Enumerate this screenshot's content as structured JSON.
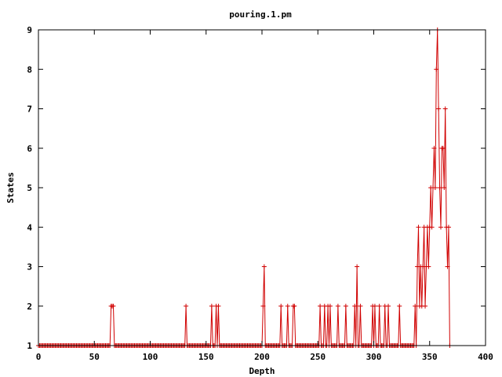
{
  "chart_data": {
    "type": "line",
    "title": "pouring.1.pm",
    "xlabel": "Depth",
    "ylabel": "States",
    "xlim": [
      0,
      400
    ],
    "ylim": [
      1,
      9
    ],
    "xticks": [
      0,
      50,
      100,
      150,
      200,
      250,
      300,
      350,
      400
    ],
    "yticks": [
      1,
      2,
      3,
      4,
      5,
      6,
      7,
      8,
      9
    ],
    "grid": false,
    "legend": "none",
    "colors": {
      "series": "#d00000",
      "frame": "#000000"
    },
    "series": [
      {
        "spikes": [
          [
            65,
            2
          ],
          [
            66,
            2
          ],
          [
            67,
            2
          ],
          [
            132,
            2
          ],
          [
            155,
            2
          ],
          [
            159,
            2
          ],
          [
            161,
            2
          ],
          [
            201,
            2
          ],
          [
            202,
            3
          ],
          [
            217,
            2
          ],
          [
            223,
            2
          ],
          [
            228,
            2
          ],
          [
            229,
            2
          ],
          [
            252,
            2
          ],
          [
            256,
            2
          ],
          [
            259,
            2
          ],
          [
            261,
            2
          ],
          [
            268,
            2
          ],
          [
            275,
            2
          ],
          [
            283,
            2
          ],
          [
            285,
            3
          ],
          [
            288,
            2
          ],
          [
            299,
            2
          ],
          [
            301,
            2
          ],
          [
            305,
            2
          ],
          [
            310,
            2
          ],
          [
            313,
            2
          ],
          [
            323,
            2
          ],
          [
            337,
            2
          ],
          [
            339,
            3
          ],
          [
            340,
            4
          ],
          [
            341,
            2
          ],
          [
            342,
            3
          ],
          [
            343,
            2
          ],
          [
            344,
            3
          ],
          [
            345,
            4
          ],
          [
            346,
            2
          ],
          [
            347,
            3
          ],
          [
            348,
            4
          ],
          [
            349,
            3
          ],
          [
            350,
            4
          ],
          [
            351,
            5
          ],
          [
            352,
            4
          ],
          [
            353,
            5
          ],
          [
            354,
            6
          ],
          [
            355,
            5
          ],
          [
            356,
            8
          ],
          [
            357,
            9
          ],
          [
            358,
            7
          ],
          [
            359,
            5
          ],
          [
            360,
            4
          ],
          [
            361,
            6
          ],
          [
            362,
            6
          ],
          [
            363,
            5
          ],
          [
            364,
            7
          ],
          [
            365,
            4
          ],
          [
            366,
            3
          ],
          [
            367,
            4
          ],
          [
            368,
            1
          ]
        ],
        "end": 368
      }
    ]
  }
}
